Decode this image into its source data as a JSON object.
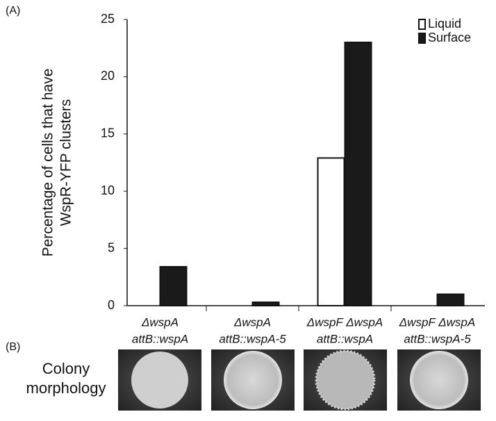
{
  "panel_labels": [
    "(A)",
    "(B)"
  ],
  "chart_data": {
    "type": "bar",
    "y_label": [
      "Percentage of cells that have",
      "WspR-YFP clusters"
    ],
    "categories": [
      [
        "ΔwspA",
        "attB::wspA"
      ],
      [
        "ΔwspA",
        "attB::wspA-5"
      ],
      [
        "ΔwspF ΔwspA",
        "attB::wspA"
      ],
      [
        "ΔwspF ΔwspA",
        "attB::wspA-5"
      ]
    ],
    "series": [
      {
        "name": "Liquid",
        "color": "#ffffff",
        "values": [
          0,
          0,
          12.9,
          0
        ]
      },
      {
        "name": "Surface",
        "color": "#1a1a1a",
        "values": [
          3.4,
          0.3,
          23,
          1.0
        ]
      }
    ],
    "ylim": [
      0,
      25
    ],
    "yticks": [
      0,
      5,
      10,
      15,
      20,
      25
    ],
    "legend": "top-right"
  },
  "colony": {
    "label": [
      "Colony",
      "morphology"
    ]
  }
}
